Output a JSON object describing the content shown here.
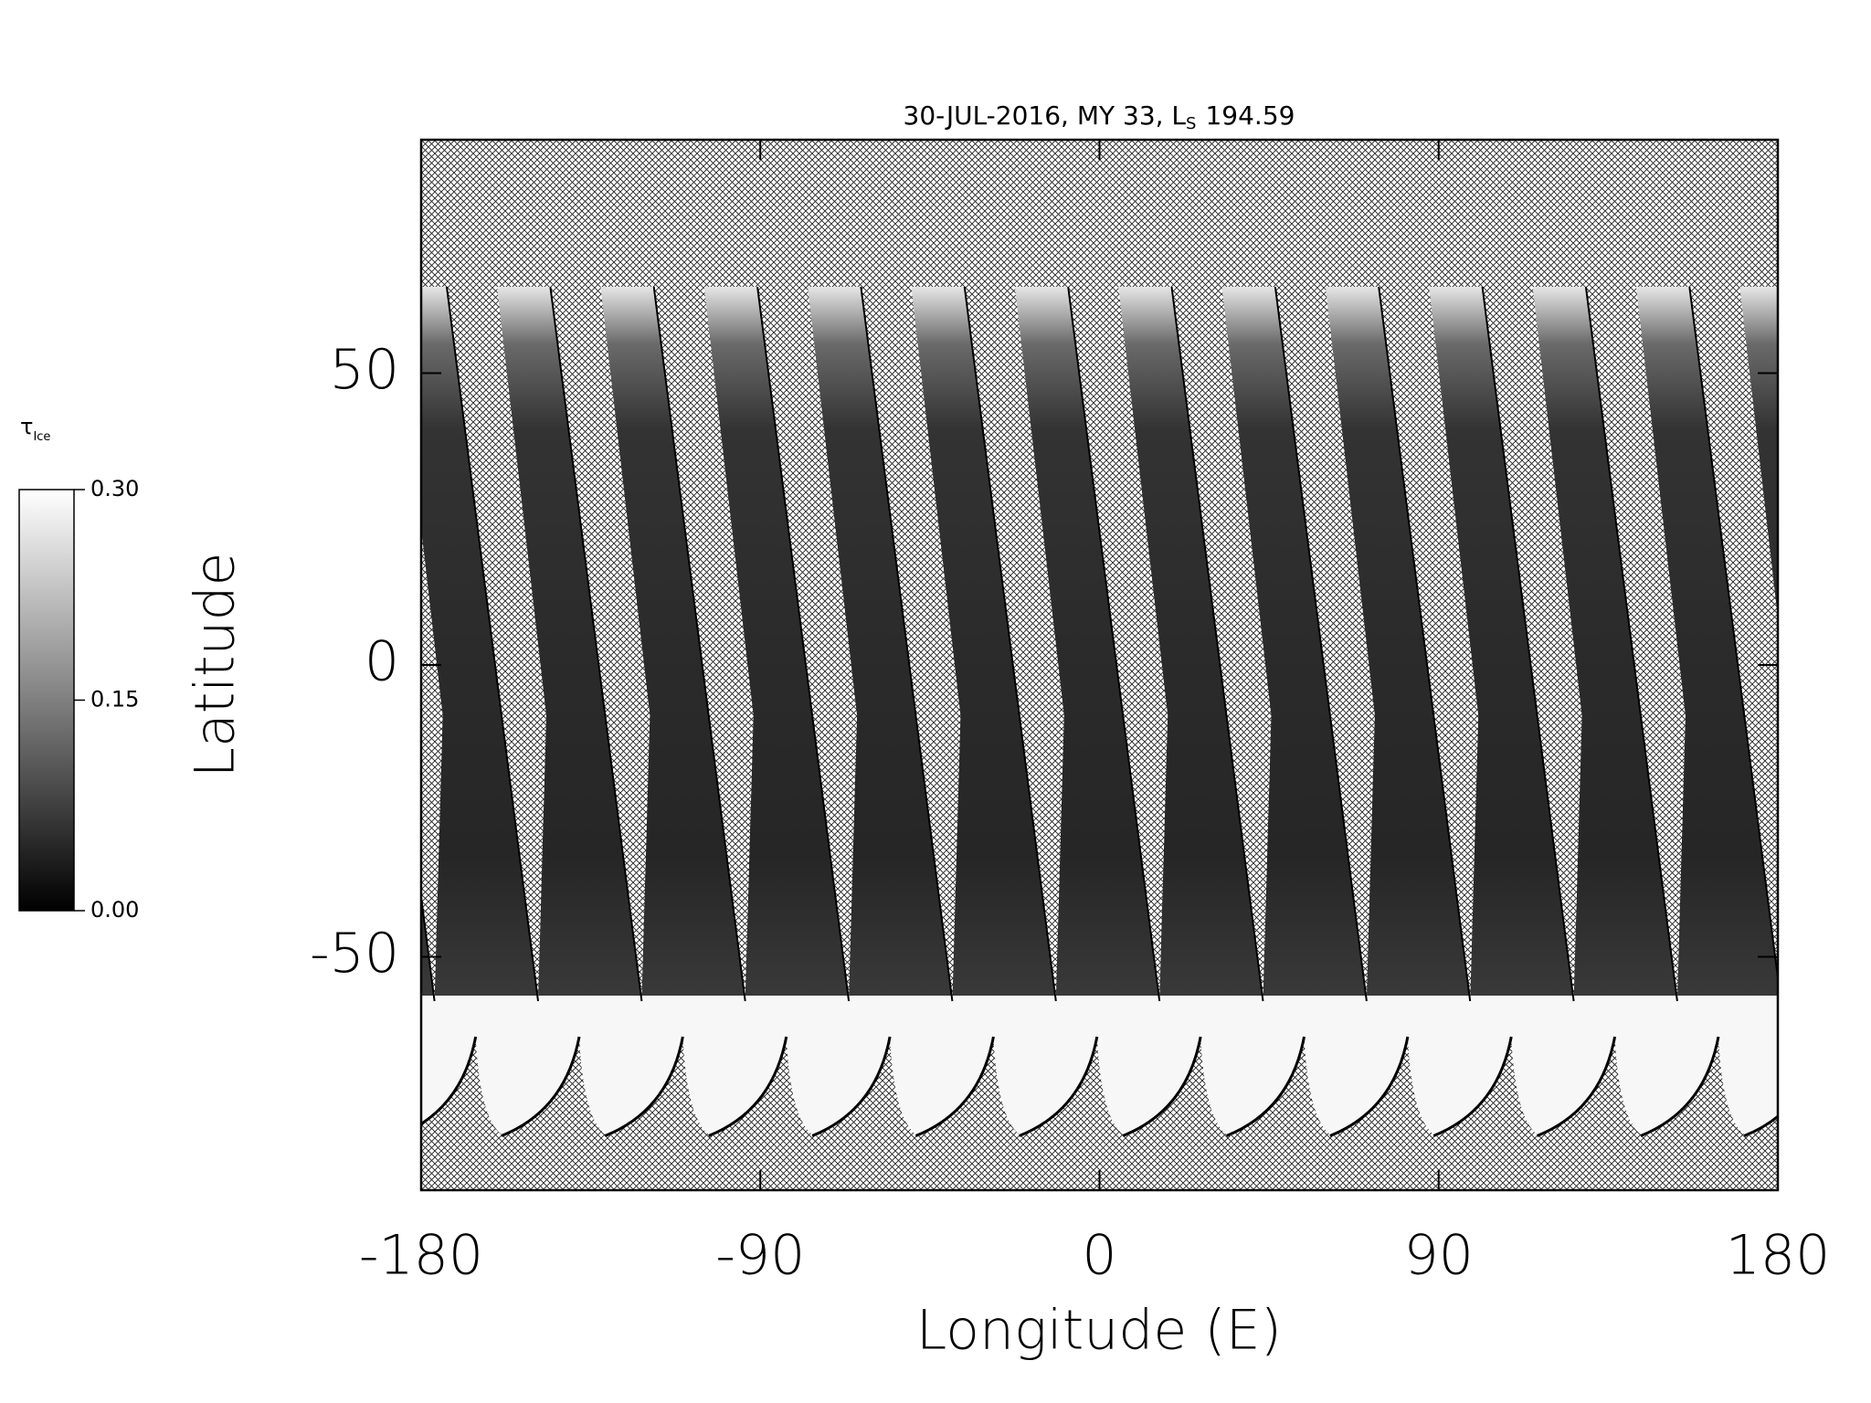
{
  "chart_data": {
    "type": "map",
    "title": {
      "text": "30-JUL-2016, MY 33,  L",
      "subscript": "S",
      "suffix": "194.59"
    },
    "x_label": "Longitude (E)",
    "y_label": "Latitude",
    "xlim": [
      -180,
      180
    ],
    "ylim": [
      -90,
      90
    ],
    "xticks": [
      -180,
      -90,
      0,
      90,
      180
    ],
    "yticks": [
      -50,
      0,
      50
    ],
    "colorbar": {
      "label": "τ",
      "label_subscript": "Ice",
      "lim": [
        0,
        0.3
      ],
      "ticks": [
        {
          "value": 0,
          "label": "0.00"
        },
        {
          "value": 0.15,
          "label": "0.15"
        },
        {
          "value": 0.3,
          "label": "0.30"
        }
      ],
      "colors": [
        "#000000",
        "#ffffff"
      ]
    }
  }
}
